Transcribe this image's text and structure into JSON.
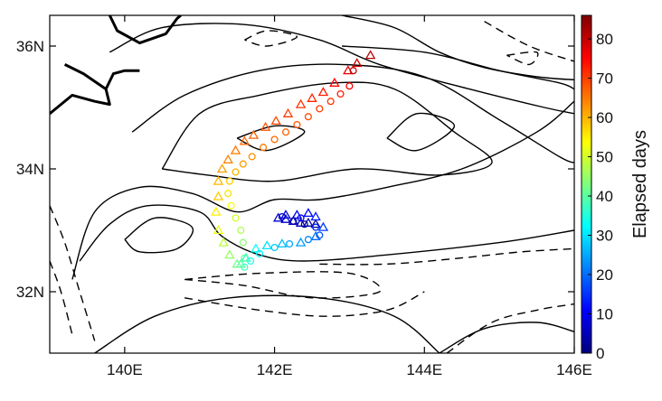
{
  "chart_data": {
    "type": "scatter",
    "title": "",
    "xlabel": "",
    "ylabel": "",
    "xlim": [
      139.0,
      146.0
    ],
    "ylim": [
      31.0,
      36.5
    ],
    "x_ticks": [
      {
        "value": 140,
        "label": "140E"
      },
      {
        "value": 142,
        "label": "142E"
      },
      {
        "value": 144,
        "label": "144E"
      },
      {
        "value": 146,
        "label": "146E"
      }
    ],
    "y_ticks": [
      {
        "value": 32,
        "label": "32N"
      },
      {
        "value": 34,
        "label": "34N"
      },
      {
        "value": 36,
        "label": "36N"
      }
    ],
    "colorbar": {
      "label": "Elapsed days",
      "range": [
        0,
        86
      ],
      "ticks": [
        0,
        10,
        20,
        30,
        40,
        50,
        60,
        70,
        80
      ],
      "colormap": "jet",
      "colors": [
        "#00007f",
        "#0000ff",
        "#007fff",
        "#00ffff",
        "#7fff7f",
        "#ffff00",
        "#ff7f00",
        "#ff0000",
        "#7f0000"
      ]
    },
    "series": [
      {
        "marker": "triangle",
        "points": [
          [
            142.55,
            33.1,
            1
          ],
          [
            142.45,
            33.12,
            3
          ],
          [
            142.35,
            33.12,
            4
          ],
          [
            142.25,
            33.15,
            5
          ],
          [
            142.15,
            33.18,
            6
          ],
          [
            142.05,
            33.2,
            7
          ],
          [
            142.15,
            33.25,
            8
          ],
          [
            142.3,
            33.25,
            9
          ],
          [
            142.45,
            33.28,
            11
          ],
          [
            142.55,
            33.22,
            13
          ],
          [
            142.65,
            33.05,
            16
          ],
          [
            142.55,
            32.9,
            20
          ],
          [
            142.35,
            32.8,
            24
          ],
          [
            142.1,
            32.78,
            27
          ],
          [
            141.9,
            32.75,
            30
          ],
          [
            141.75,
            32.7,
            33
          ],
          [
            141.62,
            32.55,
            36
          ],
          [
            141.55,
            32.45,
            39
          ],
          [
            141.5,
            32.45,
            42
          ],
          [
            141.4,
            32.6,
            45
          ],
          [
            141.32,
            32.8,
            48
          ],
          [
            141.25,
            33.0,
            52
          ],
          [
            141.22,
            33.3,
            55
          ],
          [
            141.25,
            33.55,
            58
          ],
          [
            141.25,
            33.8,
            60
          ],
          [
            141.3,
            34.0,
            62
          ],
          [
            141.38,
            34.15,
            64
          ],
          [
            141.48,
            34.3,
            65
          ],
          [
            141.6,
            34.45,
            66
          ],
          [
            141.72,
            34.55,
            67
          ],
          [
            141.88,
            34.68,
            68
          ],
          [
            142.02,
            34.78,
            69
          ],
          [
            142.18,
            34.9,
            70
          ],
          [
            142.35,
            35.05,
            71
          ],
          [
            142.5,
            35.15,
            72
          ],
          [
            142.65,
            35.25,
            73
          ],
          [
            142.8,
            35.4,
            75
          ],
          [
            142.98,
            35.6,
            77
          ],
          [
            143.1,
            35.72,
            79
          ],
          [
            143.28,
            35.85,
            81
          ]
        ]
      },
      {
        "marker": "circle",
        "points": [
          [
            142.4,
            33.1,
            2
          ],
          [
            142.25,
            33.15,
            4
          ],
          [
            142.1,
            33.22,
            6
          ],
          [
            142.35,
            33.2,
            10
          ],
          [
            142.55,
            33.05,
            14
          ],
          [
            142.6,
            32.92,
            18
          ],
          [
            142.45,
            32.85,
            22
          ],
          [
            142.2,
            32.78,
            25
          ],
          [
            142.0,
            32.72,
            28
          ],
          [
            141.8,
            32.62,
            31
          ],
          [
            141.68,
            32.5,
            35
          ],
          [
            141.6,
            32.4,
            38
          ],
          [
            141.6,
            32.55,
            41
          ],
          [
            141.58,
            32.8,
            44
          ],
          [
            141.55,
            33.0,
            47
          ],
          [
            141.48,
            33.2,
            50
          ],
          [
            141.42,
            33.4,
            53
          ],
          [
            141.38,
            33.6,
            56
          ],
          [
            141.4,
            33.8,
            58
          ],
          [
            141.48,
            33.95,
            60
          ],
          [
            141.58,
            34.08,
            62
          ],
          [
            141.7,
            34.2,
            63
          ],
          [
            141.85,
            34.35,
            65
          ],
          [
            142.0,
            34.48,
            66
          ],
          [
            142.15,
            34.6,
            67
          ],
          [
            142.3,
            34.72,
            68
          ],
          [
            142.45,
            34.85,
            69
          ],
          [
            142.6,
            34.98,
            70
          ],
          [
            142.75,
            35.1,
            71
          ],
          [
            142.88,
            35.22,
            73
          ],
          [
            143.0,
            35.35,
            76
          ],
          [
            143.05,
            35.6,
            80
          ]
        ]
      }
    ],
    "contours": [
      {
        "style": "solid",
        "points": [
          [
            139.4,
            32.5
          ],
          [
            139.8,
            33.1
          ],
          [
            140.3,
            33.4
          ],
          [
            141.0,
            33.3
          ],
          [
            141.3,
            32.9
          ],
          [
            141.8,
            32.6
          ],
          [
            142.4,
            32.5
          ],
          [
            143.5,
            32.6
          ],
          [
            145.0,
            32.8
          ],
          [
            146.0,
            33.0
          ]
        ]
      },
      {
        "style": "solid",
        "points": [
          [
            139.3,
            32.2
          ],
          [
            139.6,
            33.3
          ],
          [
            140.2,
            33.7
          ],
          [
            140.9,
            33.6
          ],
          [
            141.5,
            33.3
          ],
          [
            142.0,
            33.5
          ],
          [
            142.6,
            33.5
          ],
          [
            143.5,
            33.7
          ],
          [
            144.5,
            34.0
          ],
          [
            145.5,
            34.6
          ],
          [
            146.0,
            35.1
          ]
        ]
      },
      {
        "style": "solid",
        "points": [
          [
            140.0,
            32.85
          ],
          [
            140.4,
            33.2
          ],
          [
            140.9,
            33.05
          ],
          [
            140.7,
            32.7
          ],
          [
            140.2,
            32.65
          ],
          [
            140.0,
            32.85
          ]
        ]
      },
      {
        "style": "solid",
        "points": [
          [
            140.5,
            34.0
          ],
          [
            141.0,
            34.9
          ],
          [
            141.8,
            35.2
          ],
          [
            142.8,
            35.4
          ],
          [
            143.6,
            35.3
          ],
          [
            144.4,
            34.6
          ],
          [
            144.9,
            34.1
          ],
          [
            144.2,
            33.9
          ],
          [
            143.1,
            34.0
          ],
          [
            142.0,
            33.8
          ],
          [
            141.1,
            33.9
          ],
          [
            140.5,
            34.0
          ]
        ]
      },
      {
        "style": "solid",
        "points": [
          [
            140.1,
            34.6
          ],
          [
            140.8,
            35.2
          ],
          [
            141.8,
            35.6
          ],
          [
            142.9,
            35.7
          ],
          [
            144.0,
            35.5
          ],
          [
            145.0,
            34.8
          ],
          [
            145.8,
            34.2
          ],
          [
            146.0,
            34.1
          ]
        ]
      },
      {
        "style": "solid",
        "points": [
          [
            141.5,
            34.5
          ],
          [
            142.0,
            34.7
          ],
          [
            142.4,
            34.6
          ],
          [
            141.9,
            34.3
          ],
          [
            141.5,
            34.5
          ]
        ]
      },
      {
        "style": "solid",
        "points": [
          [
            143.5,
            34.5
          ],
          [
            143.9,
            34.9
          ],
          [
            144.4,
            34.7
          ],
          [
            143.9,
            34.3
          ],
          [
            143.5,
            34.5
          ]
        ]
      },
      {
        "style": "solid",
        "points": [
          [
            139.8,
            35.9
          ],
          [
            140.5,
            36.3
          ],
          [
            141.6,
            36.35
          ],
          [
            142.6,
            36.1
          ],
          [
            143.4,
            35.7
          ],
          [
            144.6,
            35.3
          ],
          [
            145.6,
            35.0
          ],
          [
            146.0,
            34.9
          ]
        ]
      },
      {
        "style": "solid",
        "points": [
          [
            142.9,
            36.0
          ],
          [
            144.0,
            35.9
          ],
          [
            145.0,
            35.6
          ],
          [
            145.8,
            35.4
          ],
          [
            146.0,
            35.3
          ]
        ]
      },
      {
        "style": "solid",
        "points": [
          [
            139.6,
            31.0
          ],
          [
            140.4,
            31.6
          ],
          [
            141.4,
            31.9
          ],
          [
            142.6,
            31.9
          ],
          [
            143.6,
            31.6
          ],
          [
            144.2,
            31.0
          ]
        ]
      },
      {
        "style": "solid",
        "points": [
          [
            142.9,
            36.5
          ],
          [
            143.6,
            36.3
          ],
          [
            144.2,
            35.9
          ],
          [
            144.8,
            35.65
          ],
          [
            145.5,
            35.5
          ],
          [
            146.0,
            35.45
          ]
        ]
      },
      {
        "style": "solid",
        "points": [
          [
            144.2,
            31.0
          ],
          [
            144.8,
            31.4
          ],
          [
            145.5,
            31.5
          ],
          [
            146.0,
            31.35
          ]
        ]
      },
      {
        "style": "dashed",
        "points": [
          [
            142.6,
            32.45
          ],
          [
            143.5,
            32.45
          ],
          [
            144.5,
            32.55
          ],
          [
            145.3,
            32.65
          ],
          [
            146.0,
            32.7
          ]
        ]
      },
      {
        "style": "dashed",
        "points": [
          [
            140.8,
            32.2
          ],
          [
            141.6,
            32.1
          ],
          [
            142.5,
            31.9
          ],
          [
            143.4,
            32.0
          ],
          [
            143.0,
            32.3
          ],
          [
            141.8,
            32.3
          ],
          [
            140.8,
            32.2
          ]
        ]
      },
      {
        "style": "dashed",
        "points": [
          [
            140.8,
            31.9
          ],
          [
            141.8,
            31.7
          ],
          [
            142.7,
            31.6
          ],
          [
            143.5,
            31.7
          ],
          [
            144.0,
            32.0
          ]
        ]
      },
      {
        "style": "dashed",
        "points": [
          [
            139.0,
            33.4
          ],
          [
            139.2,
            32.8
          ],
          [
            139.4,
            32.0
          ],
          [
            139.6,
            31.2
          ]
        ]
      },
      {
        "style": "dashed",
        "points": [
          [
            139.0,
            32.5
          ],
          [
            139.15,
            32.0
          ],
          [
            139.3,
            31.3
          ]
        ]
      },
      {
        "style": "dashed",
        "points": [
          [
            144.3,
            31.0
          ],
          [
            144.9,
            31.5
          ],
          [
            145.5,
            31.7
          ],
          [
            146.0,
            31.8
          ]
        ]
      },
      {
        "style": "dashed",
        "points": [
          [
            144.8,
            36.4
          ],
          [
            145.4,
            36.0
          ],
          [
            146.0,
            35.75
          ]
        ]
      },
      {
        "style": "dashed",
        "points": [
          [
            145.1,
            35.85
          ],
          [
            145.5,
            35.9
          ],
          [
            145.4,
            35.7
          ],
          [
            145.1,
            35.85
          ]
        ]
      },
      {
        "style": "dashed",
        "points": [
          [
            141.6,
            36.1
          ],
          [
            141.9,
            36.25
          ],
          [
            142.3,
            36.15
          ],
          [
            141.9,
            36.0
          ],
          [
            141.6,
            36.1
          ]
        ]
      }
    ],
    "coastline": [
      [
        [
          139.8,
          36.5
        ],
        [
          139.9,
          36.25
        ],
        [
          140.2,
          36.05
        ],
        [
          140.55,
          36.2
        ],
        [
          140.7,
          36.45
        ],
        [
          140.75,
          36.5
        ]
      ],
      [
        [
          139.2,
          35.7
        ],
        [
          139.45,
          35.55
        ],
        [
          139.75,
          35.3
        ],
        [
          139.8,
          35.05
        ],
        [
          139.6,
          35.1
        ],
        [
          139.3,
          35.2
        ],
        [
          139.1,
          35.0
        ],
        [
          139.0,
          34.9
        ]
      ],
      [
        [
          139.75,
          35.3
        ],
        [
          139.85,
          35.55
        ],
        [
          140.0,
          35.6
        ],
        [
          140.2,
          35.6
        ]
      ]
    ]
  }
}
